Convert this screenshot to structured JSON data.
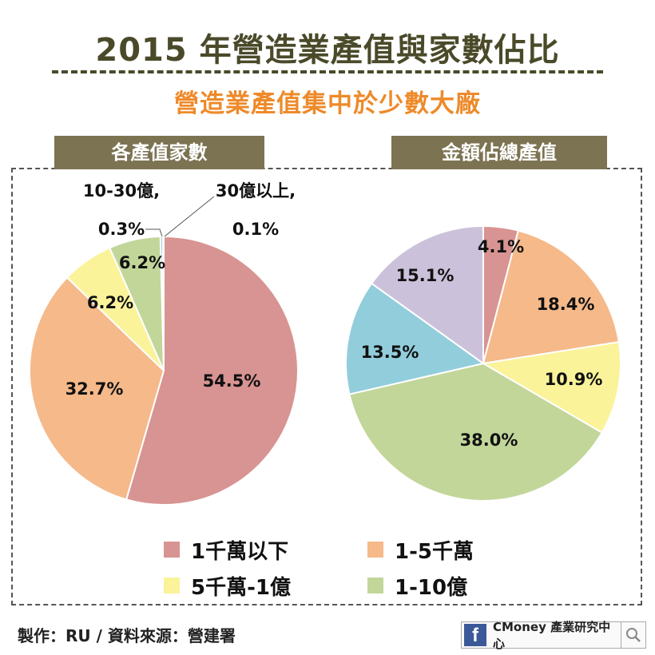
{
  "header": {
    "title": "2015 年營造業產值與家數佔比",
    "subtitle": "營造業產值集中於少數大廠"
  },
  "panels": {
    "left_title": "各產值家數",
    "right_title": "金額佔總產值"
  },
  "colors": {
    "1千萬以下": "#d89492",
    "1-5千萬": "#f5b98a",
    "5千萬-1億": "#faf39a",
    "1-10億": "#c2d69a",
    "10-30億": "#92cddc",
    "30億以上": "#ccc1da",
    "title": "#4a4a2a",
    "subtitle": "#ee8a2a",
    "header_bg": "#7c7352"
  },
  "chart_data": [
    {
      "type": "pie",
      "title": "各產值家數",
      "categories": [
        "1千萬以下",
        "1-5千萬",
        "5千萬-1億",
        "1-10億",
        "10-30億",
        "30億以上"
      ],
      "values": [
        54.5,
        32.7,
        6.2,
        6.2,
        0.3,
        0.1
      ],
      "labels": [
        "54.5%",
        "32.7%",
        "6.2%",
        "6.2%",
        "10-30億, 0.3%",
        "30億以上, 0.1%"
      ]
    },
    {
      "type": "pie",
      "title": "金額佔總產值",
      "categories": [
        "1千萬以下",
        "1-5千萬",
        "5千萬-1億",
        "1-10億",
        "10-30億",
        "30億以上"
      ],
      "values": [
        4.1,
        18.4,
        10.9,
        38.0,
        13.5,
        15.1
      ],
      "labels": [
        "4.1%",
        "18.4%",
        "10.9%",
        "38.0%",
        "13.5%",
        "15.1%"
      ]
    }
  ],
  "legend": {
    "items": [
      {
        "label": "1千萬以下",
        "color": "#d89492"
      },
      {
        "label": "1-5千萬",
        "color": "#f5b98a"
      },
      {
        "label": "5千萬-1億",
        "color": "#faf39a"
      },
      {
        "label": "1-10億",
        "color": "#c2d69a"
      }
    ]
  },
  "footer": {
    "credit": "製作：RU  / 資料來源：營建署",
    "brand": "CMoney 產業研究中心",
    "fb_icon": "f"
  }
}
